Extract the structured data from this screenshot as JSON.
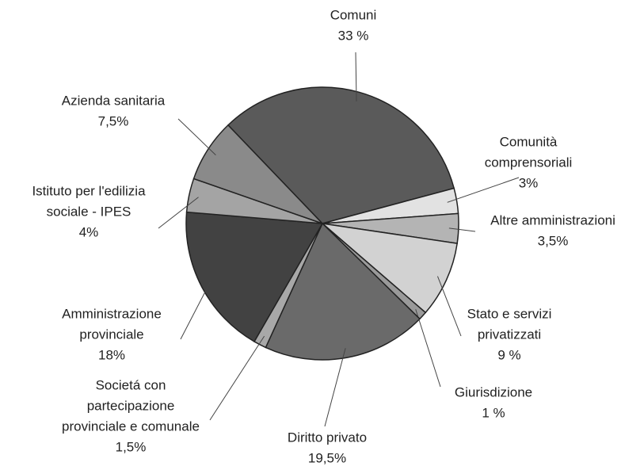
{
  "chart_data": {
    "type": "pie",
    "categories": [
      [
        "Comuni"
      ],
      [
        "Comunità",
        "comprensoriali"
      ],
      [
        "Altre amministrazioni"
      ],
      [
        "Stato e servizi",
        "privatizzati"
      ],
      [
        "Giurisdizione"
      ],
      [
        "Diritto privato"
      ],
      [
        "Societá con",
        "partecipazione",
        "provinciale e comunale"
      ],
      [
        "Amministrazione",
        "provinciale"
      ],
      [
        "Istituto per l'edilizia",
        "sociale - IPES"
      ],
      [
        "Azienda sanitaria"
      ]
    ],
    "values": [
      33,
      3,
      3.5,
      9,
      1,
      19.5,
      1.5,
      18,
      4,
      7.5
    ],
    "value_labels": [
      "33 %",
      "3%",
      "3,5%",
      "9 %",
      "1 %",
      "19,5%",
      "1,5%",
      "18%",
      "4%",
      "7,5%"
    ],
    "colors": [
      "#5a5a5a",
      "#e2e2e2",
      "#b4b4b4",
      "#d2d2d2",
      "#9a9a9a",
      "#6a6a6a",
      "#a8a8a8",
      "#424242",
      "#a4a4a4",
      "#8a8a8a"
    ]
  }
}
